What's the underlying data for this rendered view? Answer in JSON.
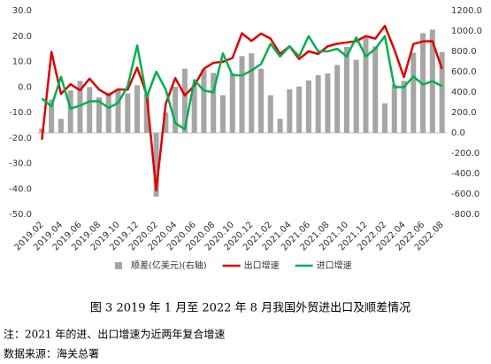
{
  "chart_data": {
    "type": "combo",
    "categories": [
      "2019.02",
      null,
      "2019.04",
      null,
      "2019.06",
      null,
      "2019.08",
      null,
      "2019.10",
      null,
      "2019.12",
      null,
      "2020.02",
      null,
      "2020.04",
      null,
      "2020.06",
      null,
      "2020.08",
      null,
      "2020.10",
      null,
      "2020.12",
      null,
      "2021.02",
      null,
      "2021.04",
      null,
      "2021.06",
      null,
      "2021.08",
      null,
      "2021.10",
      null,
      "2021.12",
      null,
      "2022.02",
      null,
      "2022.04",
      null,
      "2022.06",
      null,
      "2022.08"
    ],
    "series": [
      {
        "name": "顺差(亿美元)(右轴)",
        "type": "bar",
        "axis": "y2",
        "color": "#a6a6a6",
        "values": [
          41,
          326,
          138,
          417,
          510,
          450,
          348,
          396,
          428,
          387,
          467,
          390,
          -626,
          199,
          453,
          630,
          465,
          623,
          589,
          370,
          584,
          754,
          781,
          630,
          370,
          138,
          428,
          455,
          515,
          566,
          583,
          667,
          845,
          717,
          944,
          850,
          290,
          473,
          511,
          788,
          979,
          1013,
          793
        ]
      },
      {
        "name": "出口增速",
        "type": "line",
        "color": "#e00000",
        "values": [
          -20.7,
          13.8,
          -2.7,
          1.1,
          -1.3,
          3.3,
          -1.0,
          -3.2,
          -0.9,
          -1.1,
          7.6,
          -3.0,
          -40.6,
          -6.6,
          3.5,
          -3.3,
          0.5,
          7.2,
          9.5,
          9.9,
          11.4,
          21.1,
          18.1,
          21.0,
          19.0,
          13.0,
          16.0,
          11.0,
          14.0,
          13.0,
          16.0,
          17.0,
          17.5,
          18.0,
          20.0,
          19.0,
          24.0,
          14.7,
          3.9,
          16.9,
          17.9,
          18.0,
          7.1
        ]
      },
      {
        "name": "进口增速",
        "type": "line",
        "color": "#00b050",
        "values": [
          -4.5,
          -7.6,
          4.0,
          -8.5,
          -7.3,
          -5.6,
          -5.6,
          -8.2,
          -6.2,
          0.3,
          16.3,
          -4.0,
          6.0,
          -1.0,
          -14.2,
          -16.6,
          2.7,
          -1.4,
          -2.1,
          13.2,
          4.7,
          4.5,
          6.5,
          9.0,
          17.0,
          12.0,
          16.0,
          12.0,
          20.0,
          14.0,
          14.0,
          15.0,
          12.0,
          19.5,
          12.0,
          15.0,
          20.0,
          -0.1,
          0.0,
          4.1,
          1.0,
          2.3,
          0.3
        ]
      }
    ],
    "ylim": [
      -50,
      30
    ],
    "yticks": [
      {
        "value": -50,
        "label": "-50.0"
      },
      {
        "value": -40,
        "label": "-40.0"
      },
      {
        "value": -30,
        "label": "-30.0"
      },
      {
        "value": -20,
        "label": "-20.0"
      },
      {
        "value": -10,
        "label": "-10.0"
      },
      {
        "value": 0,
        "label": "0.0"
      },
      {
        "value": 10,
        "label": "10.0"
      },
      {
        "value": 20,
        "label": "20.0"
      },
      {
        "value": 30,
        "label": "30.0"
      }
    ],
    "y2lim": [
      -800,
      1200
    ],
    "y2ticks": [
      {
        "value": -800,
        "label": "-800.0"
      },
      {
        "value": -600,
        "label": "-600.0"
      },
      {
        "value": -400,
        "label": "-400.0"
      },
      {
        "value": -200,
        "label": "-200.0"
      },
      {
        "value": 0,
        "label": "0.0"
      },
      {
        "value": 200,
        "label": "200.0"
      },
      {
        "value": 400,
        "label": "400.0"
      },
      {
        "value": 600,
        "label": "600.0"
      },
      {
        "value": 800,
        "label": "800.0"
      },
      {
        "value": 1000,
        "label": "1000.0"
      },
      {
        "value": 1200,
        "label": "1200.0"
      }
    ],
    "legend": "bottom",
    "caption": "图 3  2019 年 1 月至 2022 年 8 月我国外贸进出口及顺差情况",
    "notes": [
      "注：2021 年的进、出口增速为近两年复合增速",
      "数据来源：海关总署"
    ]
  }
}
